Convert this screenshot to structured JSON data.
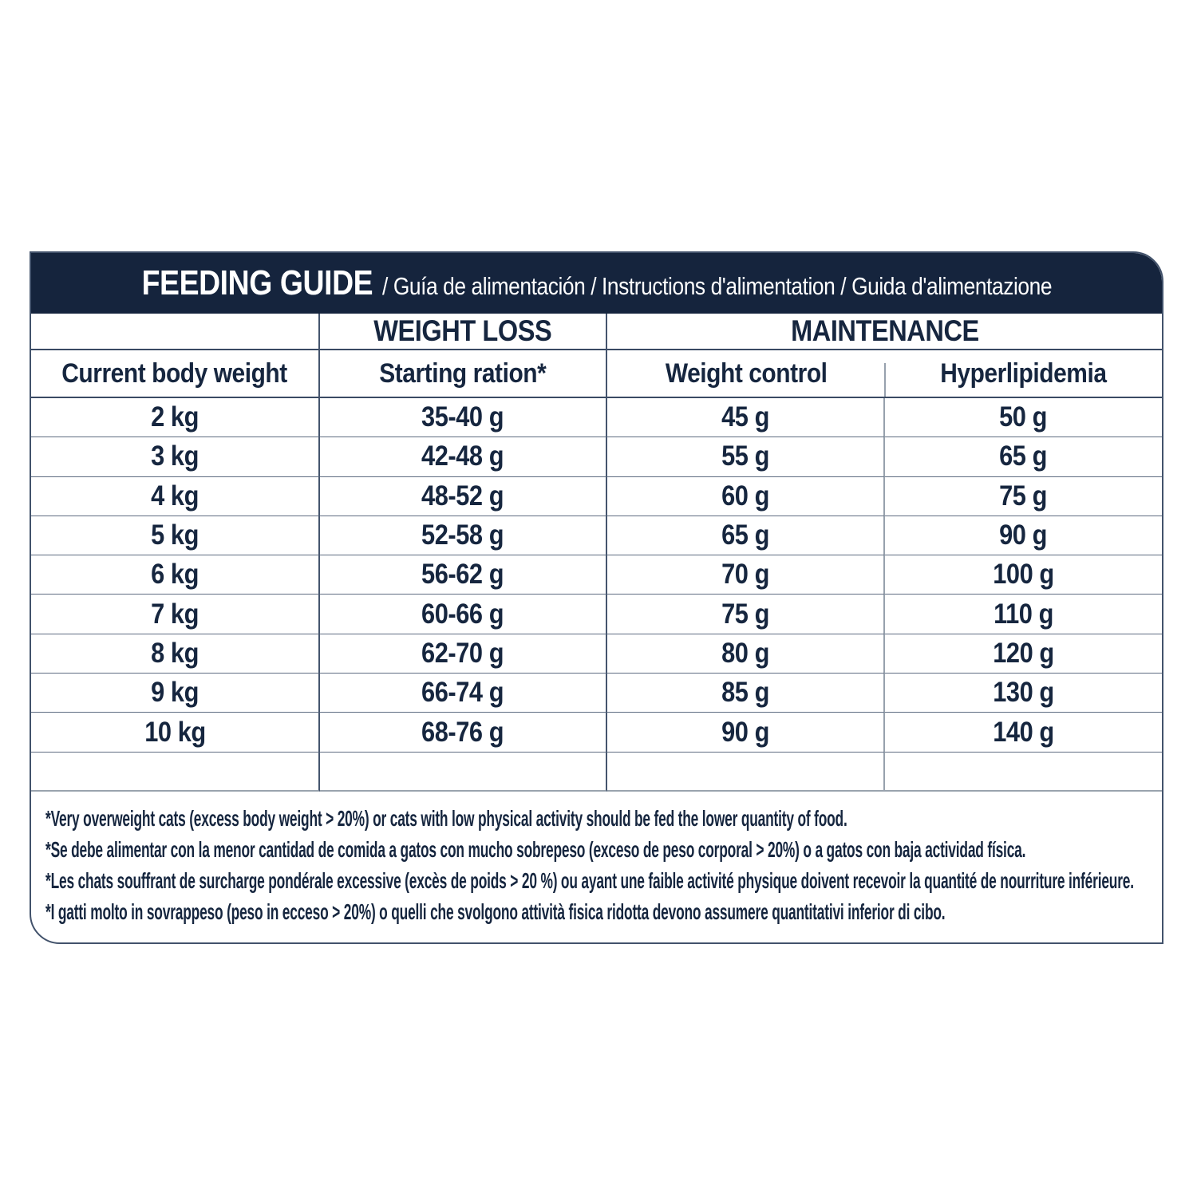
{
  "header": {
    "title": "FEEDING GUIDE",
    "subtitle": "/ Guía de alimentación / Instructions d'alimentation / Guida d'alimentazione"
  },
  "table": {
    "group_headers": {
      "weight_loss": "WEIGHT LOSS",
      "maintenance": "MAINTENANCE"
    },
    "columns": [
      "Current body weight",
      "Starting ration*",
      "Weight control",
      "Hyperlipidemia"
    ],
    "rows": [
      {
        "weight": "2 kg",
        "starting_ration": "35-40 g",
        "weight_control": "45 g",
        "hyperlipidemia": "50 g"
      },
      {
        "weight": "3 kg",
        "starting_ration": "42-48 g",
        "weight_control": "55 g",
        "hyperlipidemia": "65 g"
      },
      {
        "weight": "4 kg",
        "starting_ration": "48-52 g",
        "weight_control": "60 g",
        "hyperlipidemia": "75 g"
      },
      {
        "weight": "5 kg",
        "starting_ration": "52-58 g",
        "weight_control": "65 g",
        "hyperlipidemia": "90 g"
      },
      {
        "weight": "6 kg",
        "starting_ration": "56-62 g",
        "weight_control": "70 g",
        "hyperlipidemia": "100 g"
      },
      {
        "weight": "7 kg",
        "starting_ration": "60-66 g",
        "weight_control": "75 g",
        "hyperlipidemia": "110 g"
      },
      {
        "weight": "8 kg",
        "starting_ration": "62-70 g",
        "weight_control": "80 g",
        "hyperlipidemia": "120 g"
      },
      {
        "weight": "9 kg",
        "starting_ration": "66-74 g",
        "weight_control": "85 g",
        "hyperlipidemia": "130 g"
      },
      {
        "weight": "10 kg",
        "starting_ration": "68-76 g",
        "weight_control": "90 g",
        "hyperlipidemia": "140 g"
      }
    ]
  },
  "footnotes": {
    "en": "*Very overweight cats (excess body weight > 20%) or cats with low physical activity should be fed the lower quantity of food.",
    "es": "*Se debe alimentar con la menor cantidad de comida a gatos con mucho sobrepeso (exceso de peso corporal > 20%) o a gatos con baja actividad física.",
    "fr": "*Les chats souffrant de surcharge pondérale excessive (excès de poids > 20 %) ou ayant une faible activité physique doivent recevoir la quantité de nourriture inférieure.",
    "it": "*I gatti molto in sovrappeso (peso in ecceso > 20%) o quelli che svolgono attività fisica ridotta devono assumere quantitativi inferior di cibo."
  },
  "colors": {
    "navy": "#15243D",
    "text": "#16263F",
    "line_dark": "#44546D",
    "line_light": "#97A1AD"
  }
}
